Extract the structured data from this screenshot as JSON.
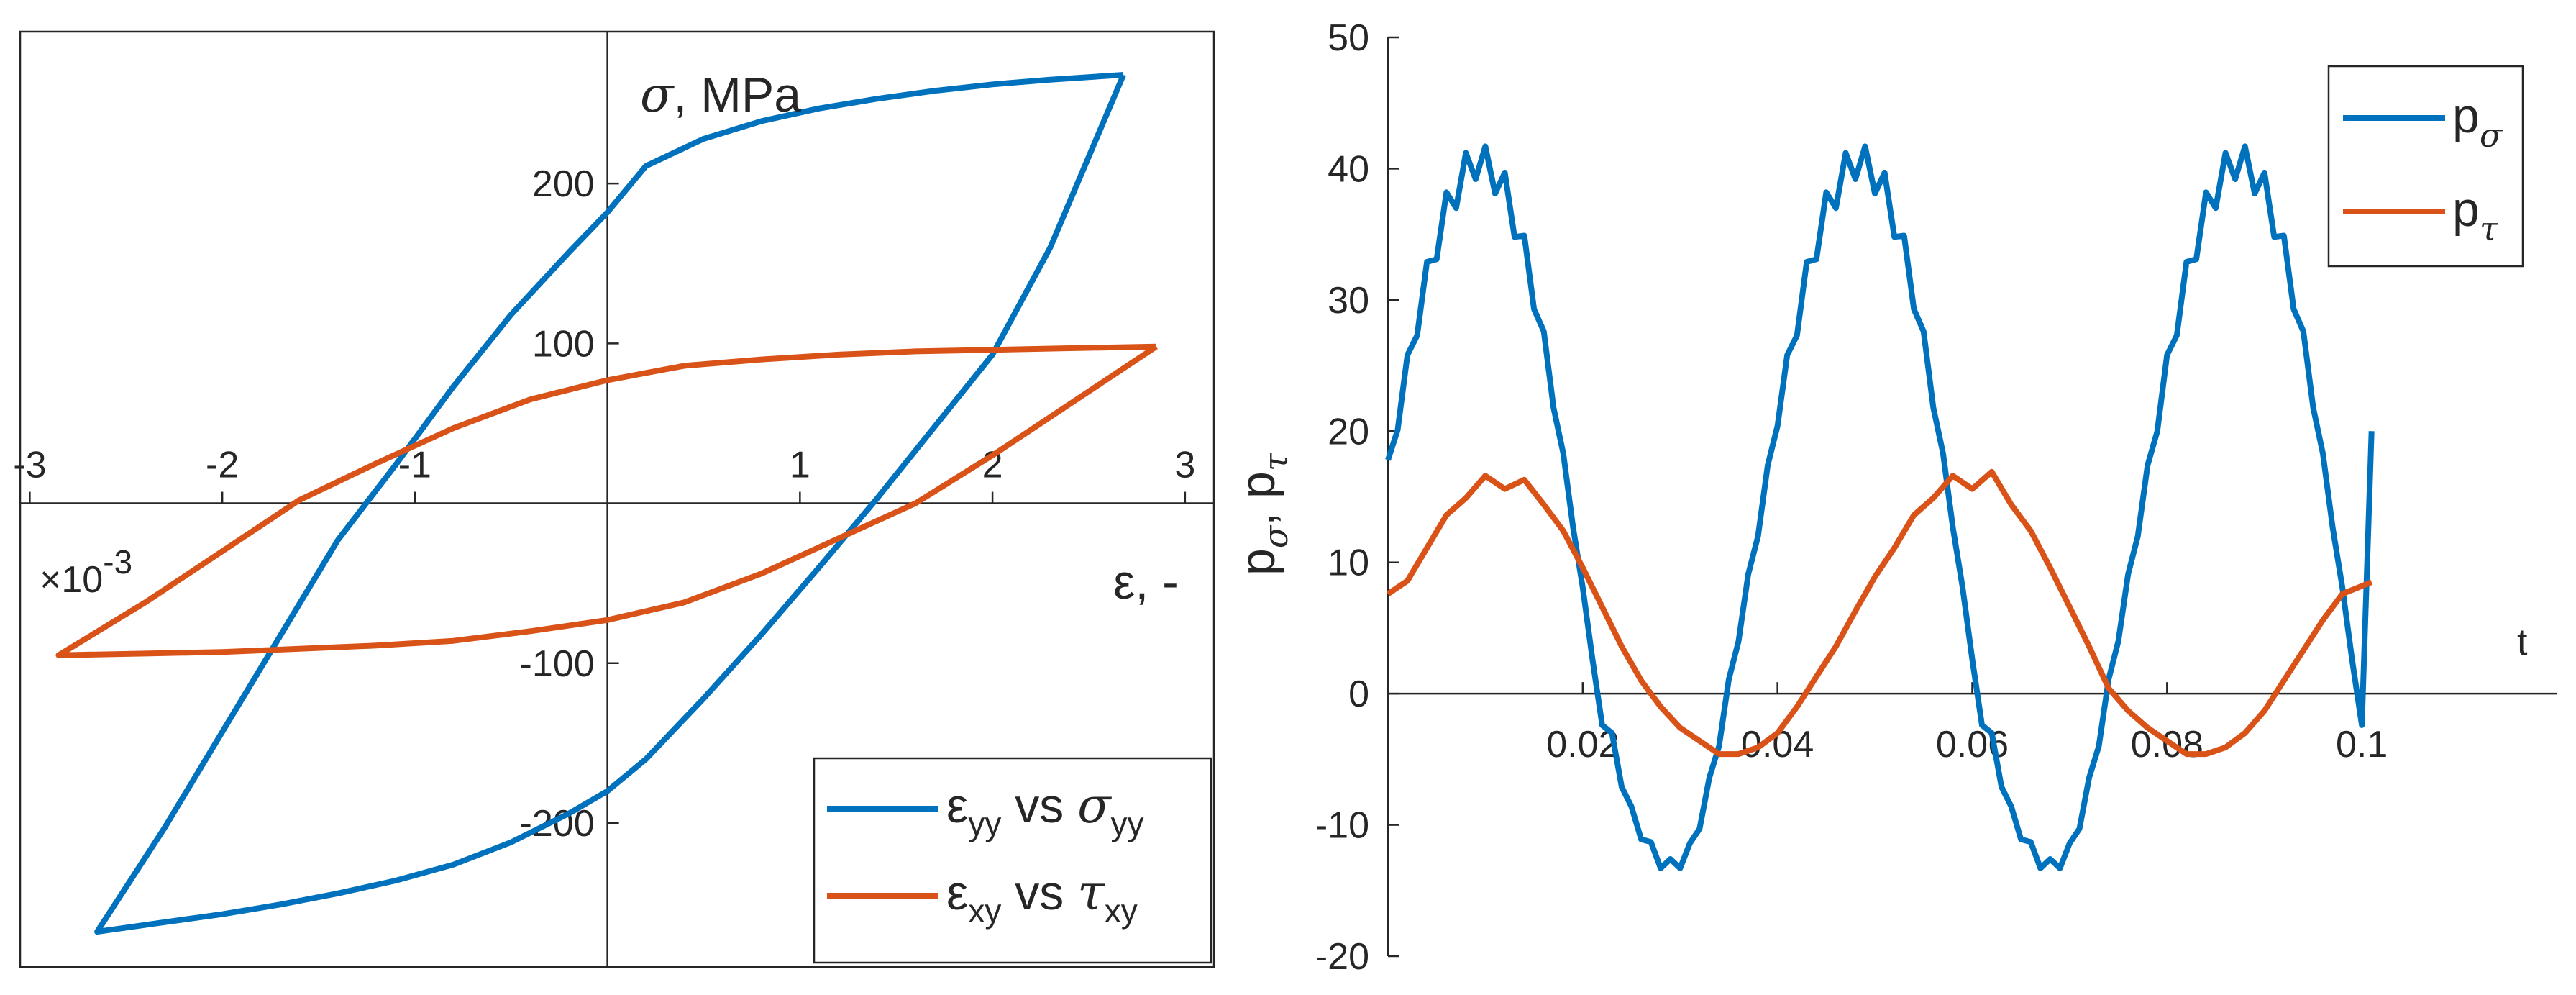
{
  "chart_data": [
    {
      "type": "line",
      "x_multiplier_label": "×10",
      "x_multiplier_exp": "-3",
      "xlabel": "ε, -",
      "ylabel_symbol": "σ",
      "ylabel_rest": ", MPa",
      "xlim": [
        -3.05,
        3.15
      ],
      "ylim": [
        -290,
        295
      ],
      "xticks": [
        -3,
        -2,
        -1,
        1,
        2,
        3
      ],
      "xtick_labels": [
        "-3",
        "-2",
        "-1",
        "1",
        "2",
        "3"
      ],
      "yticks": [
        -200,
        -100,
        100,
        200
      ],
      "ytick_labels": [
        "-200",
        "-100",
        "100",
        "200"
      ],
      "grid": false,
      "axes_location": "origin",
      "legend_position": "bottom-right",
      "series": [
        {
          "name": "εyy vs σyy",
          "legend_base": "ε",
          "legend_sub": "yy",
          "legend_mid": " vs ",
          "legend_greek": "σ",
          "legend_greek_sub": "yy",
          "color": "#0072BD",
          "x": [
            2.68,
            2.3,
            2.0,
            1.7,
            1.4,
            1.1,
            0.8,
            0.5,
            0.2,
            0.0,
            -0.2,
            -0.5,
            -0.8,
            -1.1,
            -1.4,
            -1.7,
            -2.0,
            -2.3,
            -2.65,
            -2.3,
            -2.0,
            -1.7,
            -1.4,
            -1.1,
            -0.8,
            -0.5,
            -0.2,
            0.0,
            0.2,
            0.5,
            0.8,
            1.1,
            1.4,
            1.7,
            2.0,
            2.3,
            2.68
          ],
          "y": [
            268,
            265,
            262,
            258,
            253,
            247,
            239,
            228,
            211,
            182,
            157,
            118,
            73,
            24,
            -23,
            -83,
            -143,
            -203,
            -268,
            -262,
            -257,
            -251,
            -244,
            -236,
            -226,
            -212,
            -194,
            -180,
            -160,
            -122,
            -82,
            -40,
            3,
            48,
            93,
            160,
            268
          ]
        },
        {
          "name": "εxy vs τxy",
          "legend_base": "ε",
          "legend_sub": "xy",
          "legend_mid": " vs ",
          "legend_greek": "τ",
          "legend_greek_sub": "xy",
          "color": "#D95319",
          "x": [
            2.85,
            2.4,
            2.0,
            1.6,
            1.2,
            0.8,
            0.4,
            0.0,
            -0.4,
            -0.8,
            -1.2,
            -1.6,
            -2.0,
            -2.4,
            -2.85,
            -2.4,
            -2.0,
            -1.6,
            -1.2,
            -0.8,
            -0.4,
            0.0,
            0.4,
            0.8,
            1.2,
            1.6,
            2.0,
            2.4,
            2.85
          ],
          "y": [
            98,
            97,
            96,
            95,
            93,
            90,
            86,
            77,
            65,
            47,
            25,
            2,
            -30,
            -62,
            -95,
            -94,
            -93,
            -91,
            -89,
            -86,
            -80,
            -73,
            -62,
            -44,
            -22,
            0,
            30,
            62,
            98
          ]
        }
      ]
    },
    {
      "type": "line",
      "xlabel": "t",
      "ylabel_main": "p",
      "ylabel_sub1": "σ",
      "ylabel_sep": ", p",
      "ylabel_sub2": "τ",
      "xlim": [
        0,
        0.12
      ],
      "ylim": [
        -20,
        50
      ],
      "xticks": [
        0.02,
        0.04,
        0.06,
        0.08,
        0.1
      ],
      "xtick_labels": [
        "0.02",
        "0.04",
        "0.06",
        "0.08",
        "0.1"
      ],
      "yticks": [
        -20,
        -10,
        0,
        10,
        20,
        30,
        40,
        50
      ],
      "ytick_labels": [
        "-20",
        "-10",
        "0",
        "10",
        "20",
        "30",
        "40",
        "50"
      ],
      "grid": false,
      "legend_position": "top-right",
      "series": [
        {
          "name": "pσ",
          "legend_main": "p",
          "legend_sub": "σ",
          "color": "#0072BD",
          "x": [
            0.0,
            0.001,
            0.002,
            0.003,
            0.004,
            0.005,
            0.006,
            0.007,
            0.008,
            0.009,
            0.01,
            0.011,
            0.012,
            0.013,
            0.014,
            0.015,
            0.016,
            0.017,
            0.018,
            0.019,
            0.02,
            0.021,
            0.022,
            0.023,
            0.024,
            0.025,
            0.026,
            0.027,
            0.028,
            0.029,
            0.03,
            0.031,
            0.032,
            0.033,
            0.034,
            0.035,
            0.036,
            0.037,
            0.038,
            0.039,
            0.04,
            0.041,
            0.042,
            0.043,
            0.044,
            0.045,
            0.046,
            0.047,
            0.048,
            0.049,
            0.05,
            0.051,
            0.052,
            0.053,
            0.054,
            0.055,
            0.056,
            0.057,
            0.058,
            0.059,
            0.06,
            0.061,
            0.062,
            0.063,
            0.064,
            0.065,
            0.066,
            0.067,
            0.068,
            0.069,
            0.07,
            0.071,
            0.072,
            0.073,
            0.074,
            0.075,
            0.076,
            0.077,
            0.078,
            0.079,
            0.08,
            0.081,
            0.082,
            0.083,
            0.084,
            0.085,
            0.086,
            0.087,
            0.088,
            0.089,
            0.09,
            0.091,
            0.092,
            0.093,
            0.094,
            0.095,
            0.096,
            0.097,
            0.098,
            0.099,
            0.1,
            0.101
          ],
          "y": [
            17.8,
            20.1,
            25.8,
            27.3,
            32.9,
            33.1,
            38.2,
            37.0,
            41.2,
            39.2,
            41.7,
            38.1,
            39.7,
            34.8,
            34.9,
            29.3,
            27.6,
            21.8,
            18.3,
            12.7,
            8.1,
            2.6,
            -2.4,
            -3.0,
            -7.1,
            -8.6,
            -11.1,
            -11.3,
            -13.3,
            -12.6,
            -13.3,
            -11.4,
            -10.3,
            -6.4,
            -4.0,
            1.1,
            4.0,
            9.1,
            12.0,
            17.4,
            20.4,
            25.8,
            27.3,
            32.9,
            33.1,
            38.2,
            37.0,
            41.2,
            39.2,
            41.7,
            38.1,
            39.7,
            34.8,
            34.9,
            29.3,
            27.6,
            21.8,
            18.3,
            12.7,
            8.1,
            2.6,
            -2.4,
            -3.0,
            -7.1,
            -8.6,
            -11.1,
            -11.3,
            -13.3,
            -12.6,
            -13.3,
            -11.4,
            -10.3,
            -6.4,
            -4.0,
            1.1,
            4.0,
            9.1,
            12.0,
            17.4,
            20.0,
            25.8,
            27.3,
            32.9,
            33.1,
            38.2,
            37.0,
            41.2,
            39.2,
            41.7,
            38.1,
            39.7,
            34.8,
            34.9,
            29.3,
            27.6,
            21.8,
            18.3,
            12.7,
            8.1,
            2.6,
            -2.4,
            20.0
          ]
        },
        {
          "name": "pτ",
          "legend_main": "p",
          "legend_sub": "τ",
          "color": "#D95319",
          "x": [
            0.0,
            0.002,
            0.004,
            0.006,
            0.008,
            0.01,
            0.012,
            0.014,
            0.016,
            0.018,
            0.02,
            0.022,
            0.024,
            0.026,
            0.028,
            0.03,
            0.032,
            0.034,
            0.036,
            0.038,
            0.04,
            0.042,
            0.044,
            0.046,
            0.048,
            0.05,
            0.052,
            0.054,
            0.056,
            0.058,
            0.06,
            0.062,
            0.064,
            0.066,
            0.068,
            0.07,
            0.072,
            0.074,
            0.076,
            0.078,
            0.08,
            0.082,
            0.084,
            0.086,
            0.088,
            0.09,
            0.092,
            0.094,
            0.096,
            0.098,
            0.1,
            0.101
          ],
          "y": [
            7.6,
            8.6,
            11.1,
            13.6,
            14.9,
            16.6,
            15.6,
            16.3,
            14.4,
            12.4,
            9.6,
            6.6,
            3.6,
            1.0,
            -1.0,
            -2.6,
            -3.6,
            -4.6,
            -4.6,
            -4.1,
            -3.0,
            -1.0,
            1.3,
            3.6,
            6.3,
            8.9,
            11.1,
            13.6,
            14.9,
            16.6,
            15.6,
            16.9,
            14.4,
            12.4,
            9.6,
            6.6,
            3.6,
            0.4,
            -1.3,
            -2.6,
            -3.6,
            -4.6,
            -4.6,
            -4.1,
            -3.0,
            -1.3,
            1.0,
            3.3,
            5.6,
            7.6,
            8.2,
            8.5
          ]
        }
      ]
    }
  ]
}
